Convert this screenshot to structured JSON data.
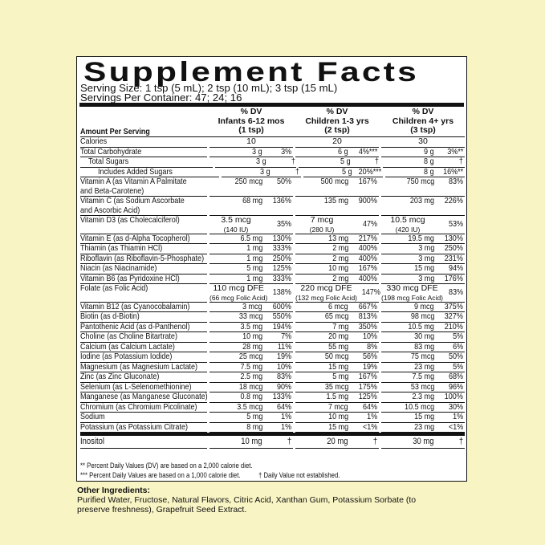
{
  "title": "Supplement Facts",
  "serving_size": "Serving Size: 1 tsp (5 mL); 2 tsp (10 mL); 3 tsp (15 mL)",
  "servings": "Servings Per Container: 47; 24; 16",
  "amount_header": "Amount Per Serving",
  "columns": [
    {
      "dv": "% DV",
      "group": "Infants 6-12 mos",
      "serving": "(1  tsp)"
    },
    {
      "dv": "% DV",
      "group": "Children 1-3 yrs",
      "serving": "(2 tsp)"
    },
    {
      "dv": "% DV",
      "group": "Children 4+ yrs",
      "serving": "(3 tsp)"
    }
  ],
  "rows": [
    {
      "name": [
        "Calories"
      ],
      "level": 0,
      "cells": [
        [
          "10"
        ],
        [
          "20"
        ],
        [
          "30"
        ]
      ]
    },
    {
      "name": [
        "Total Carbohydrate"
      ],
      "level": 0,
      "cells": [
        [
          "3 g",
          "3%"
        ],
        [
          "6 g",
          "4%***"
        ],
        [
          "9 g",
          "3%**"
        ]
      ]
    },
    {
      "name": [
        "Total Sugars"
      ],
      "level": 1,
      "cells": [
        [
          "3 g",
          "†"
        ],
        [
          "5 g",
          "†"
        ],
        [
          "8 g",
          "†"
        ]
      ]
    },
    {
      "name": [
        "Includes Added Sugars"
      ],
      "level": 2,
      "cells": [
        [
          "3 g",
          "†"
        ],
        [
          "5 g",
          "20%***"
        ],
        [
          "8 g",
          "16%**"
        ]
      ]
    },
    {
      "name": [
        "Vitamin A (as Vitamin A Palmitate",
        "and Beta-Carotene)"
      ],
      "level": 0,
      "cells": [
        [
          "250 mcg",
          "50%"
        ],
        [
          "500 mcg",
          "167%"
        ],
        [
          "750 mcg",
          "83%"
        ]
      ]
    },
    {
      "name": [
        "Vitamin C (as Sodium Ascorbate",
        "and Ascorbic Acid)"
      ],
      "level": 0,
      "cells": [
        [
          "68 mg",
          "136%"
        ],
        [
          "135 mg",
          "900%"
        ],
        [
          "203 mg",
          "226%"
        ]
      ]
    },
    {
      "name": [
        "Vitamin D3  (as Cholecalciferol)"
      ],
      "level": 0,
      "cells": [
        [
          [
            "3.5 mcg",
            "(140 IU)"
          ],
          "35%"
        ],
        [
          [
            "7 mcg",
            "(280 IU)"
          ],
          "47%"
        ],
        [
          [
            "10.5 mcg",
            "(420 IU)"
          ],
          "53%"
        ]
      ]
    },
    {
      "name": [
        "Vitamin E (as d-Alpha Tocopherol)"
      ],
      "level": 0,
      "cells": [
        [
          "6.5 mg",
          "130%"
        ],
        [
          "13 mg",
          "217%"
        ],
        [
          "19.5 mg",
          "130%"
        ]
      ]
    },
    {
      "name": [
        "Thiamin (as Thiamin HCl)"
      ],
      "level": 0,
      "cells": [
        [
          "1 mg",
          "333%"
        ],
        [
          "2 mg",
          "400%"
        ],
        [
          "3 mg",
          "250%"
        ]
      ]
    },
    {
      "name": [
        "Riboflavin (as Riboflavin-5-Phosphate)"
      ],
      "level": 0,
      "cells": [
        [
          "1 mg",
          "250%"
        ],
        [
          "2 mg",
          "400%"
        ],
        [
          "3 mg",
          "231%"
        ]
      ]
    },
    {
      "name": [
        "Niacin (as Niacinamide)"
      ],
      "level": 0,
      "cells": [
        [
          "5 mg",
          "125%"
        ],
        [
          "10 mg",
          "167%"
        ],
        [
          "15 mg",
          "94%"
        ]
      ]
    },
    {
      "name": [
        "Vitamin B6 (as Pyridoxine HCl)"
      ],
      "level": 0,
      "cells": [
        [
          "1 mg",
          "333%"
        ],
        [
          "2 mg",
          "400%"
        ],
        [
          "3 mg",
          "176%"
        ]
      ]
    },
    {
      "name": [
        "Folate (as Folic Acid)"
      ],
      "level": 0,
      "cells": [
        [
          [
            "110 mcg DFE",
            "(66 mcg Folic Acid)"
          ],
          "138%"
        ],
        [
          [
            "220 mcg DFE",
            "(132 mcg Folic Acid)"
          ],
          "147%"
        ],
        [
          [
            "330 mcg DFE",
            "(198 mcg Folic Acid)"
          ],
          "83%"
        ]
      ]
    },
    {
      "name": [
        "Vitamin B12 (as Cyanocobalamin)"
      ],
      "level": 0,
      "cells": [
        [
          "3 mcg",
          "600%"
        ],
        [
          "6 mcg",
          "667%"
        ],
        [
          "9 mcg",
          "375%"
        ]
      ]
    },
    {
      "name": [
        "Biotin (as d-Biotin)"
      ],
      "level": 0,
      "cells": [
        [
          "33 mcg",
          "550%"
        ],
        [
          "65 mcg",
          "813%"
        ],
        [
          "98 mcg",
          "327%"
        ]
      ]
    },
    {
      "name": [
        "Pantothenic Acid (as d-Panthenol)"
      ],
      "level": 0,
      "cells": [
        [
          "3.5 mg",
          "194%"
        ],
        [
          "7 mg",
          "350%"
        ],
        [
          "10.5 mg",
          "210%"
        ]
      ]
    },
    {
      "name": [
        "Choline (as Choline Bitartrate)"
      ],
      "level": 0,
      "cells": [
        [
          "10 mg",
          "7%"
        ],
        [
          "20 mg",
          "10%"
        ],
        [
          "30 mg",
          "5%"
        ]
      ]
    },
    {
      "name": [
        "Calcium (as Calcium Lactate)"
      ],
      "level": 0,
      "cells": [
        [
          "28 mg",
          "11%"
        ],
        [
          "55 mg",
          "8%"
        ],
        [
          "83 mg",
          "6%"
        ]
      ]
    },
    {
      "name": [
        "Iodine (as Potassium Iodide)"
      ],
      "level": 0,
      "cells": [
        [
          "25 mcg",
          "19%"
        ],
        [
          "50 mcg",
          "56%"
        ],
        [
          "75 mcg",
          "50%"
        ]
      ]
    },
    {
      "name": [
        "Magnesium (as Magnesium Lactate)"
      ],
      "level": 0,
      "cells": [
        [
          "7.5 mg",
          "10%"
        ],
        [
          "15 mg",
          "19%"
        ],
        [
          "23 mg",
          "5%"
        ]
      ]
    },
    {
      "name": [
        "Zinc (as Zinc Gluconate)"
      ],
      "level": 0,
      "cells": [
        [
          "2.5 mg",
          "83%"
        ],
        [
          "5 mg",
          "167%"
        ],
        [
          "7.5 mg",
          "68%"
        ]
      ]
    },
    {
      "name": [
        "Selenium (as L-Selenomethionine)"
      ],
      "level": 0,
      "cells": [
        [
          "18 mcg",
          "90%"
        ],
        [
          "35 mcg",
          "175%"
        ],
        [
          "53 mcg",
          "96%"
        ]
      ]
    },
    {
      "name": [
        "Manganese (as Manganese Gluconate)"
      ],
      "level": 0,
      "cells": [
        [
          "0.8 mg",
          "133%"
        ],
        [
          "1.5 mg",
          "125%"
        ],
        [
          "2.3 mg",
          "100%"
        ]
      ]
    },
    {
      "name": [
        "Chromium (as Chromium Picolinate)"
      ],
      "level": 0,
      "cells": [
        [
          "3.5 mcg",
          "64%"
        ],
        [
          "7 mcg",
          "64%"
        ],
        [
          "10.5 mcg",
          "30%"
        ]
      ]
    },
    {
      "name": [
        "Sodium"
      ],
      "level": 0,
      "cells": [
        [
          "5 mg",
          "1%"
        ],
        [
          "10 mg",
          "1%"
        ],
        [
          "15 mg",
          "1%"
        ]
      ]
    },
    {
      "name": [
        "Potassium (as Potassium Citrate)"
      ],
      "level": 0,
      "cells": [
        [
          "8 mg",
          "1%"
        ],
        [
          "15 mg",
          "<1%"
        ],
        [
          "23 mg",
          "<1%"
        ]
      ]
    }
  ],
  "other_rows": [
    {
      "name": [
        "Inositol"
      ],
      "level": 0,
      "cells": [
        [
          "10 mg",
          "†"
        ],
        [
          "20 mg",
          "†"
        ],
        [
          "30 mg",
          "†"
        ]
      ]
    }
  ],
  "footnotes": [
    "** Percent Daily Values (DV) are based on a 2,000 calorie diet.",
    "*** Percent Daily Values are based on a 1,000 calorie diet.",
    "† Daily Value not established."
  ],
  "other_ingredients": {
    "label": "Other Ingredients:",
    "text": "Purified Water, Fructose, Natural Flavors, Citric Acid, Xanthan Gum, Potassium Sorbate (to preserve freshness), Grapefruit Seed Extract."
  }
}
